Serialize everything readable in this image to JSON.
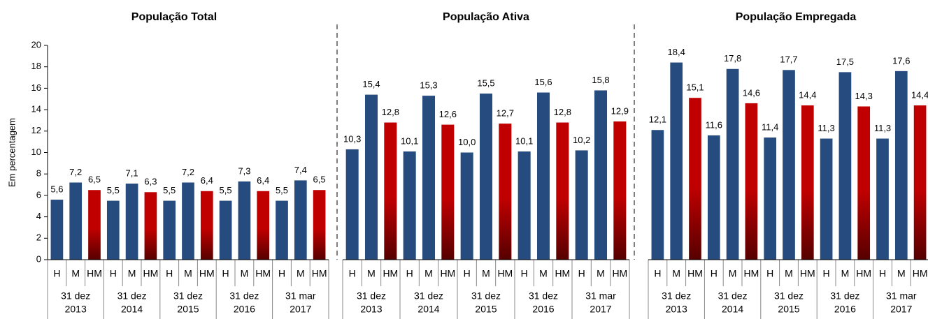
{
  "chart_data": [
    {
      "type": "bar",
      "title": "População Total",
      "ylabel": "Em percentagem",
      "categories": [
        "H",
        "M",
        "HM",
        "H",
        "M",
        "HM",
        "H",
        "M",
        "HM",
        "H",
        "M",
        "HM",
        "H",
        "M",
        "HM"
      ],
      "groups": [
        [
          "31 dez",
          "2013"
        ],
        [
          "31 dez",
          "2014"
        ],
        [
          "31 dez",
          "2015"
        ],
        [
          "31 dez",
          "2016"
        ],
        [
          "31 mar",
          "2017"
        ]
      ],
      "values": [
        5.6,
        7.2,
        6.5,
        5.5,
        7.1,
        6.3,
        5.5,
        7.2,
        6.4,
        5.5,
        7.3,
        6.4,
        5.5,
        7.4,
        6.5
      ],
      "value_labels": [
        "5,6",
        "7,2",
        "6,5",
        "5,5",
        "7,1",
        "6,3",
        "5,5",
        "7,2",
        "6,4",
        "5,5",
        "7,3",
        "6,4",
        "5,5",
        "7,4",
        "6,5"
      ],
      "colors": [
        "#254b7f",
        "#254b7f",
        "#c00000"
      ],
      "ylim": [
        0,
        20
      ],
      "yticks": [
        0,
        2,
        4,
        6,
        8,
        10,
        12,
        14,
        16,
        18,
        20
      ]
    },
    {
      "type": "bar",
      "title": "População Ativa",
      "categories": [
        "H",
        "M",
        "HM",
        "H",
        "M",
        "HM",
        "H",
        "M",
        "HM",
        "H",
        "M",
        "HM",
        "H",
        "M",
        "HM"
      ],
      "groups": [
        [
          "31 dez",
          "2013"
        ],
        [
          "31 dez",
          "2014"
        ],
        [
          "31 dez",
          "2015"
        ],
        [
          "31 dez",
          "2016"
        ],
        [
          "31 mar",
          "2017"
        ]
      ],
      "values": [
        10.3,
        15.4,
        12.8,
        10.1,
        15.3,
        12.6,
        10.0,
        15.5,
        12.7,
        10.1,
        15.6,
        12.8,
        10.2,
        15.8,
        12.9
      ],
      "value_labels": [
        "10,3",
        "15,4",
        "12,8",
        "10,1",
        "15,3",
        "12,6",
        "10,0",
        "15,5",
        "12,7",
        "10,1",
        "15,6",
        "12,8",
        "10,2",
        "15,8",
        "12,9"
      ],
      "colors": [
        "#254b7f",
        "#254b7f",
        "#c00000"
      ],
      "ylim": [
        0,
        20
      ]
    },
    {
      "type": "bar",
      "title": "População Empregada",
      "categories": [
        "H",
        "M",
        "HM",
        "H",
        "M",
        "HM",
        "H",
        "M",
        "HM",
        "H",
        "M",
        "HM",
        "H",
        "M",
        "HM"
      ],
      "groups": [
        [
          "31 dez",
          "2013"
        ],
        [
          "31 dez",
          "2014"
        ],
        [
          "31 dez",
          "2015"
        ],
        [
          "31 dez",
          "2016"
        ],
        [
          "31 mar",
          "2017"
        ]
      ],
      "values": [
        12.1,
        18.4,
        15.1,
        11.6,
        17.8,
        14.6,
        11.4,
        17.7,
        14.4,
        11.3,
        17.5,
        14.3,
        11.3,
        17.6,
        14.4
      ],
      "value_labels": [
        "12,1",
        "18,4",
        "15,1",
        "11,6",
        "17,8",
        "14,6",
        "11,4",
        "17,7",
        "14,4",
        "11,3",
        "17,5",
        "14,3",
        "11,3",
        "17,6",
        "14,4"
      ],
      "colors": [
        "#254b7f",
        "#254b7f",
        "#c00000"
      ],
      "ylim": [
        0,
        20
      ]
    }
  ]
}
